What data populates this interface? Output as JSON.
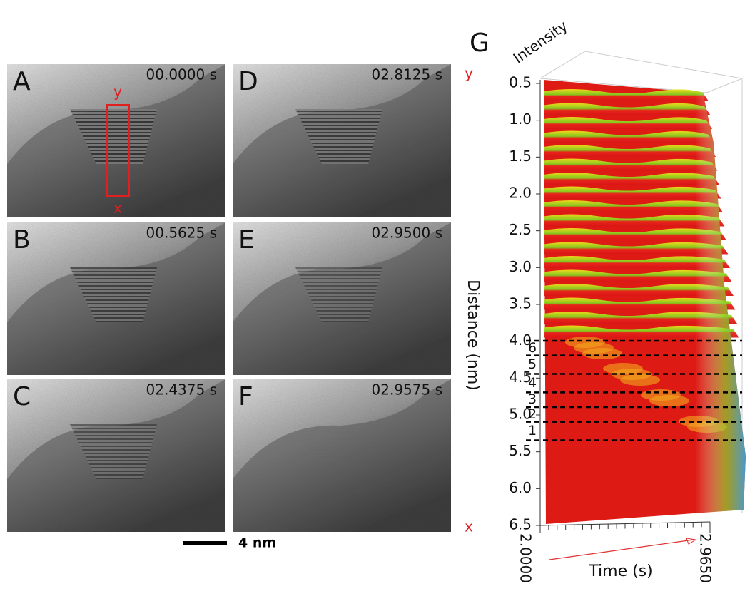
{
  "panels": [
    {
      "label": "A",
      "time": "00.0000 s"
    },
    {
      "label": "D",
      "time": "02.8125 s"
    },
    {
      "label": "B",
      "time": "00.5625 s"
    },
    {
      "label": "E",
      "time": "02.9500 s"
    },
    {
      "label": "C",
      "time": "02.4375 s"
    },
    {
      "label": "F",
      "time": "02.9575 s"
    }
  ],
  "roi": {
    "top": "y",
    "bottom": "x"
  },
  "scale_bar": "4 nm",
  "plot": {
    "label": "G",
    "z_label": "Intensity",
    "y_label": "Distance (nm)",
    "x_label": "Time (s)",
    "y_end_top": "y",
    "y_end_bottom": "x",
    "ylim": [
      0.5,
      6.5
    ],
    "yticks": [
      0.5,
      {
        "value": 1,
        "label": "1.0"
      },
      1.5,
      {
        "value": 2,
        "label": "2.0"
      },
      2.5,
      {
        "value": 3,
        "label": "3.0"
      },
      3.5,
      {
        "value": 4,
        "label": "4.0"
      },
      4.5,
      {
        "value": 5,
        "label": "5.0"
      },
      5.5,
      {
        "value": 6,
        "label": "6.0"
      },
      6.5
    ],
    "xlim": [
      2.0,
      2.965
    ],
    "xticks": [
      {
        "value": 2,
        "label": "2.0000"
      },
      {
        "value": 2.965,
        "label": "2.9650"
      }
    ],
    "dashed_lines": [
      4.1,
      4.3,
      4.55,
      4.8,
      5.0,
      5.2,
      5.45
    ],
    "layer_labels": [
      "1",
      "2",
      "3",
      "4",
      "5",
      "6"
    ]
  }
}
